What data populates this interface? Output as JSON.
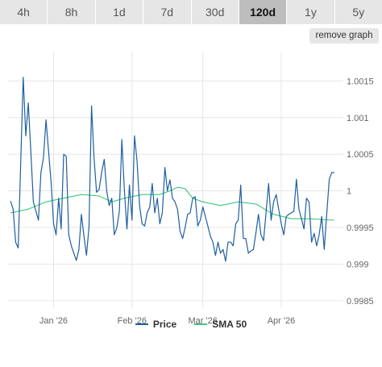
{
  "range_tabs": [
    {
      "label": "4h",
      "active": false
    },
    {
      "label": "8h",
      "active": false
    },
    {
      "label": "1d",
      "active": false
    },
    {
      "label": "7d",
      "active": false
    },
    {
      "label": "30d",
      "active": false
    },
    {
      "label": "120d",
      "active": true
    },
    {
      "label": "1y",
      "active": false
    },
    {
      "label": "5y",
      "active": false
    }
  ],
  "remove_graph_label": "remove graph",
  "colors": {
    "price": "#1f5f9f",
    "sma": "#3cc77a",
    "grid": "#e6e6e6",
    "axis_text": "#666666"
  },
  "chart_data": {
    "type": "line",
    "title": "",
    "xlabel": "",
    "ylabel": "",
    "ylim": [
      0.9984,
      1.0019
    ],
    "xlim": [
      "2025-12-14",
      "2026-04-23"
    ],
    "y_ticks": [
      0.9985,
      0.999,
      0.9995,
      1,
      1.0005,
      1.001,
      1.0015
    ],
    "y_tick_labels": [
      "0.9985",
      "0.999",
      "0.9995",
      "1",
      "1.0005",
      "1.001",
      "1.0015"
    ],
    "x_ticks": [
      "2026-01-01",
      "2026-02-01",
      "2026-03-01",
      "2026-04-01"
    ],
    "x_tick_labels": [
      "Jan '26",
      "Feb '26",
      "Mar '26",
      "Apr '26"
    ],
    "grid": true,
    "legend_position": "bottom-center",
    "series": [
      {
        "name": "Price",
        "dates": [
          "2025-12-15",
          "2025-12-16",
          "2025-12-17",
          "2025-12-18",
          "2025-12-20",
          "2025-12-21",
          "2025-12-22",
          "2025-12-23",
          "2025-12-24",
          "2025-12-26",
          "2025-12-27",
          "2025-12-28",
          "2025-12-29",
          "2025-12-30",
          "2025-12-31",
          "2026-01-01",
          "2026-01-02",
          "2026-01-03",
          "2026-01-04",
          "2026-01-05",
          "2026-01-06",
          "2026-01-07",
          "2026-01-08",
          "2026-01-09",
          "2026-01-10",
          "2026-01-11",
          "2026-01-12",
          "2026-01-13",
          "2026-01-14",
          "2026-01-15",
          "2026-01-16",
          "2026-01-17",
          "2026-01-18",
          "2026-01-19",
          "2026-01-20",
          "2026-01-21",
          "2026-01-22",
          "2026-01-23",
          "2026-01-24",
          "2026-01-25",
          "2026-01-26",
          "2026-01-27",
          "2026-01-28",
          "2026-01-29",
          "2026-01-30",
          "2026-01-31",
          "2026-02-01",
          "2026-02-02",
          "2026-02-03",
          "2026-02-04",
          "2026-02-05",
          "2026-02-06",
          "2026-02-07",
          "2026-02-08",
          "2026-02-09",
          "2026-02-10",
          "2026-02-11",
          "2026-02-12",
          "2026-02-13",
          "2026-02-14",
          "2026-02-15",
          "2026-02-16",
          "2026-02-17",
          "2026-02-18",
          "2026-02-19",
          "2026-02-20",
          "2026-02-21",
          "2026-02-22",
          "2026-02-23",
          "2026-02-24",
          "2026-02-25",
          "2026-02-26",
          "2026-02-27",
          "2026-02-28",
          "2026-03-01",
          "2026-03-02",
          "2026-03-03",
          "2026-03-04",
          "2026-03-05",
          "2026-03-06",
          "2026-03-07",
          "2026-03-08",
          "2026-03-09",
          "2026-03-10",
          "2026-03-11",
          "2026-03-12",
          "2026-03-13",
          "2026-03-14",
          "2026-03-15",
          "2026-03-16",
          "2026-03-17",
          "2026-03-18",
          "2026-03-19",
          "2026-03-20",
          "2026-03-21",
          "2026-03-22",
          "2026-03-23",
          "2026-03-24",
          "2026-03-25",
          "2026-03-26",
          "2026-03-27",
          "2026-03-28",
          "2026-03-29",
          "2026-03-30",
          "2026-03-31",
          "2026-04-01",
          "2026-04-02",
          "2026-04-03",
          "2026-04-04",
          "2026-04-05",
          "2026-04-06",
          "2026-04-07",
          "2026-04-08",
          "2026-04-09",
          "2026-04-10",
          "2026-04-11",
          "2026-04-12",
          "2026-04-13",
          "2026-04-14",
          "2026-04-15",
          "2026-04-16",
          "2026-04-17",
          "2026-04-18",
          "2026-04-19",
          "2026-04-20",
          "2026-04-21",
          "2026-04-22"
        ],
        "values": [
          0.99986,
          0.99975,
          0.9993,
          0.99922,
          1.00155,
          1.00075,
          1.0012,
          1.00055,
          0.99985,
          0.9996,
          1.00025,
          1.00045,
          1.00097,
          1.00055,
          1.00012,
          0.99955,
          0.9994,
          0.9999,
          0.99948,
          1.0005,
          1.00047,
          0.9994,
          0.99925,
          0.99915,
          0.99905,
          0.9992,
          0.99968,
          0.99938,
          0.99912,
          0.9995,
          1.00116,
          1.00045,
          0.99998,
          1.00002,
          1.00025,
          1.00043,
          1.0,
          0.9998,
          0.9999,
          0.9994,
          0.9995,
          0.99972,
          1.0007,
          1.0,
          0.99948,
          1.00008,
          0.9996,
          1.00075,
          1.0004,
          0.9998,
          0.99955,
          0.99952,
          0.9997,
          0.99978,
          1.0001,
          0.9997,
          0.9999,
          0.99955,
          0.9997,
          1.00032,
          1.0,
          1.00015,
          0.9999,
          0.99985,
          0.99975,
          0.99945,
          0.99935,
          0.9995,
          0.99968,
          0.9997,
          0.9999,
          0.99992,
          0.99952,
          0.9996,
          0.99978,
          0.99965,
          0.99952,
          0.99938,
          0.9993,
          0.99912,
          0.9993,
          0.99915,
          0.9992,
          0.99904,
          0.9993,
          0.9993,
          0.99925,
          0.99955,
          0.9996,
          1.00008,
          0.99935,
          0.99935,
          0.99915,
          0.99918,
          0.9992,
          0.99943,
          0.99968,
          0.9994,
          0.99932,
          0.9997,
          1.0001,
          0.9996,
          0.99985,
          0.99995,
          0.99975,
          0.99955,
          0.9994,
          0.99965,
          0.99968,
          0.9997,
          0.99972,
          1.00016,
          0.99975,
          0.99962,
          0.99948,
          0.9999,
          0.99985,
          0.9993,
          0.99942,
          0.99925,
          0.9994,
          0.99965,
          0.9992,
          0.99968,
          1.00016,
          1.00025,
          1.00025
        ]
      },
      {
        "name": "SMA 50",
        "dates": [
          "2025-12-15",
          "2025-12-22",
          "2025-12-29",
          "2026-01-05",
          "2026-01-12",
          "2026-01-19",
          "2026-01-24",
          "2026-01-29",
          "2026-02-05",
          "2026-02-12",
          "2026-02-16",
          "2026-02-19",
          "2026-02-22",
          "2026-02-25",
          "2026-03-01",
          "2026-03-08",
          "2026-03-15",
          "2026-03-22",
          "2026-03-29",
          "2026-04-05",
          "2026-04-12",
          "2026-04-22"
        ],
        "values": [
          0.9997,
          0.99975,
          0.99985,
          0.9999,
          0.99995,
          0.99993,
          0.99985,
          0.9999,
          0.99995,
          0.99995,
          1.0,
          1.00005,
          1.00003,
          0.9999,
          0.99985,
          0.9998,
          0.99985,
          0.99982,
          0.99968,
          0.99962,
          0.99962,
          0.9996
        ]
      }
    ]
  }
}
